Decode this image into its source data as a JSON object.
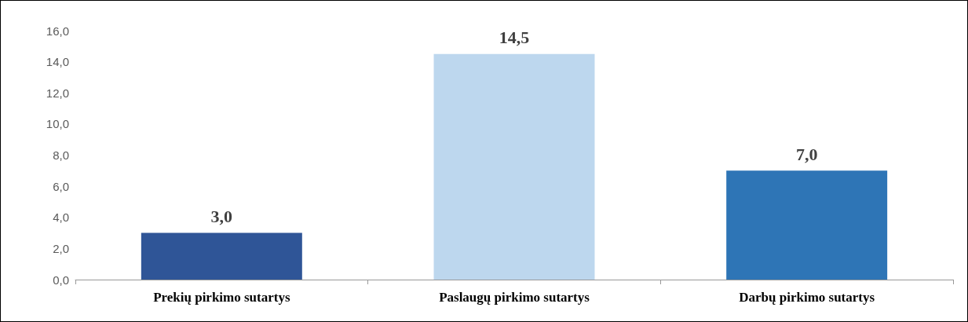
{
  "chart_data": {
    "type": "bar",
    "categories": [
      "Prekių pirkimo sutartys",
      "Paslaugų pirkimo sutartys",
      "Darbų pirkimo sutartys"
    ],
    "values": [
      3.0,
      14.5,
      7.0
    ],
    "colors": [
      "#2f5597",
      "#bdd7ee",
      "#2e75b6"
    ],
    "value_labels": [
      "3,0",
      "14,5",
      "7,0"
    ],
    "ylim": [
      0,
      16
    ],
    "yticks": [
      {
        "value": 0,
        "label": "0,0"
      },
      {
        "value": 2,
        "label": "2,0"
      },
      {
        "value": 4,
        "label": "4,0"
      },
      {
        "value": 6,
        "label": "6,0"
      },
      {
        "value": 8,
        "label": "8,0"
      },
      {
        "value": 10,
        "label": "10,0"
      },
      {
        "value": 12,
        "label": "12,0"
      },
      {
        "value": 14,
        "label": "14,0"
      },
      {
        "value": 16,
        "label": "16,0"
      }
    ],
    "grid": false
  }
}
